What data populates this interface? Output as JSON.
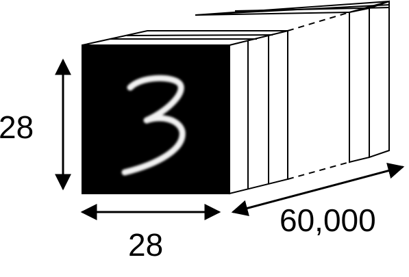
{
  "diagram": {
    "height_label": "28",
    "width_label": "28",
    "count_label": "60,000",
    "digit_shown": "3",
    "colors": {
      "image_background": "#000000",
      "digit_stroke": "#f2f2f2",
      "slab_fill": "#ffffff",
      "line": "#000000"
    }
  }
}
